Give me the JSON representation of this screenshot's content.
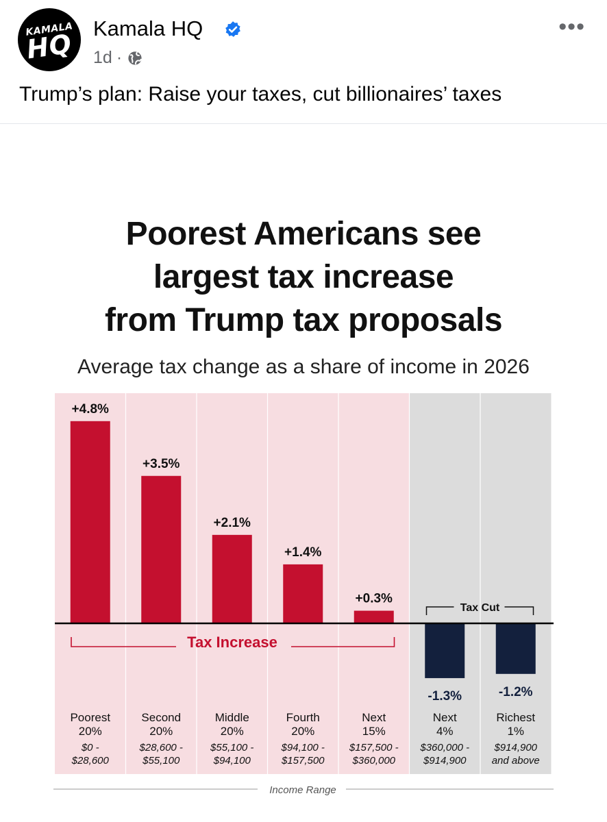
{
  "post": {
    "author": "Kamala HQ",
    "avatar_top": "KAMALA",
    "avatar_main": "HQ",
    "time": "1d",
    "separator": "·",
    "more": "•••",
    "text": "Trump’s plan: Raise your taxes, cut billionaires’ taxes",
    "verified_icon": "verified-badge-icon",
    "privacy_icon": "globe-icon",
    "verified_color": "#1877f2"
  },
  "graphic": {
    "title_lines": [
      "Poorest Americans see",
      "largest tax increase",
      "from Trump tax proposals"
    ],
    "subtitle": "Average tax change as a share of income in 2026"
  },
  "chart_data": {
    "type": "bar",
    "title": "Poorest Americans see largest tax increase from Trump tax proposals",
    "subtitle": "Average tax change as a share of income in 2026",
    "xlabel": "Income Range",
    "ylabel": "",
    "ylim": [
      -2.0,
      5.0
    ],
    "categories": [
      "Poorest 20%",
      "Second 20%",
      "Middle 20%",
      "Fourth 20%",
      "Next 15%",
      "Next 4%",
      "Richest 1%"
    ],
    "groups": [
      {
        "line1": "Poorest",
        "line2": "20%",
        "range1": "$0 -",
        "range2": "$28,600"
      },
      {
        "line1": "Second",
        "line2": "20%",
        "range1": "$28,600 -",
        "range2": "$55,100"
      },
      {
        "line1": "Middle",
        "line2": "20%",
        "range1": "$55,100 -",
        "range2": "$94,100"
      },
      {
        "line1": "Fourth",
        "line2": "20%",
        "range1": "$94,100 -",
        "range2": "$157,500"
      },
      {
        "line1": "Next",
        "line2": "15%",
        "range1": "$157,500 -",
        "range2": "$360,000"
      },
      {
        "line1": "Next",
        "line2": "4%",
        "range1": "$360,000 -",
        "range2": "$914,900"
      },
      {
        "line1": "Richest",
        "line2": "1%",
        "range1": "$914,900",
        "range2": "and above"
      }
    ],
    "values": [
      4.8,
      3.5,
      2.1,
      1.4,
      0.3,
      -1.3,
      -1.2
    ],
    "data_labels": [
      "+4.8%",
      "+3.5%",
      "+2.1%",
      "+1.4%",
      "+0.3%",
      "-1.3%",
      "-1.2%"
    ],
    "annotations": {
      "increase": "Tax Increase",
      "cut": "Tax Cut"
    },
    "colors": {
      "increase_bar": "#c4102f",
      "cut_bar": "#13203d",
      "increase_bg": "#f7dde1",
      "cut_bg": "#dcdcdc",
      "label_red": "#c4102f",
      "label_navy": "#13203d"
    }
  }
}
